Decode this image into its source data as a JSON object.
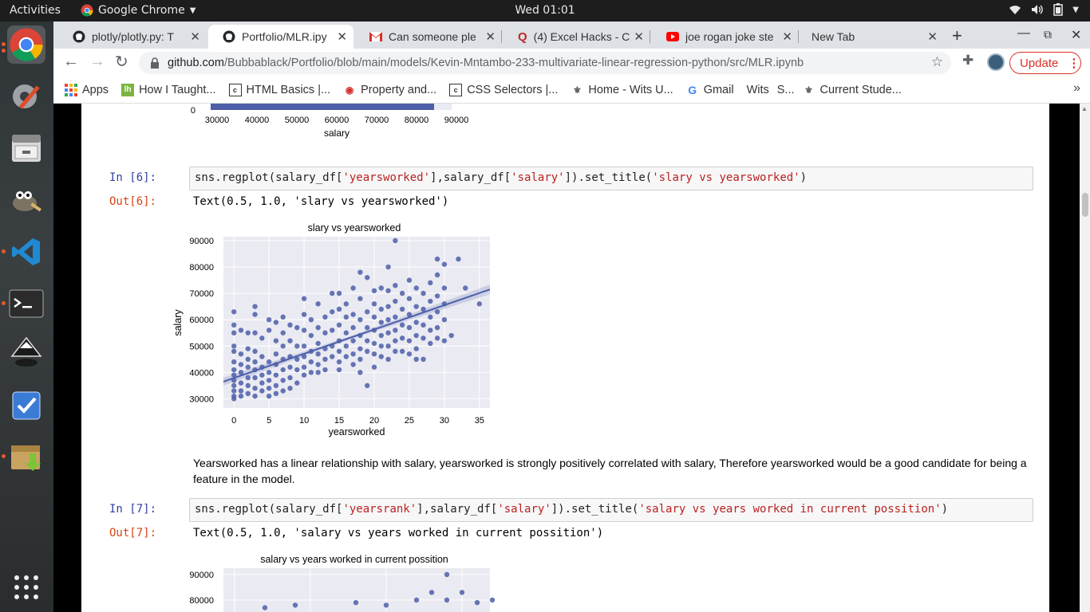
{
  "topbar": {
    "activities": "Activities",
    "app": "Google Chrome",
    "clock": "Wed 01:01"
  },
  "tabs": [
    {
      "title": "plotly/plotly.py: T",
      "icon": "github-icon"
    },
    {
      "title": "Portfolio/MLR.ipy",
      "icon": "github-icon"
    },
    {
      "title": "Can someone ple",
      "icon": "gmail-icon"
    },
    {
      "title": "(4) Excel Hacks - C",
      "icon": "quora-icon"
    },
    {
      "title": "joe rogan joke ste",
      "icon": "youtube-icon"
    },
    {
      "title": "New Tab",
      "icon": ""
    }
  ],
  "address": {
    "domain": "github.com",
    "path": "/Bubbablack/Portfolio/blob/main/models/Kevin-Mntambo-233-multivariate-linear-regression-python/src/MLR.ipynb"
  },
  "update_label": "Update",
  "bookmarks": [
    "Apps",
    "How I Taught...",
    "HTML Basics |...",
    "Property and...",
    "CSS Selectors |...",
    "Home - Wits U...",
    "Gmail",
    "Wits",
    "S...",
    "Current Stude..."
  ],
  "hist": {
    "ticks": [
      "30000",
      "40000",
      "50000",
      "60000",
      "70000",
      "80000",
      "90000"
    ],
    "zero": "0",
    "xlabel": "salary"
  },
  "cells": {
    "in6": "In [6]:",
    "out6": "Out[6]:",
    "code6_a": "sns.regplot(salary_df[",
    "code6_b": "'yearsworked'",
    "code6_c": "],salary_df[",
    "code6_d": "'salary'",
    "code6_e": "]).set_title(",
    "code6_f": "'slary vs yearsworked'",
    "code6_g": ")",
    "outtext6": "Text(0.5, 1.0, 'slary vs yearsworked')",
    "markdown": "Yearsworked has a linear relationship with salary, yearsworked is strongly positively correlated with salary, Therefore yearsworked would be a good candidate for being a feature in the model.",
    "in7": "In [7]:",
    "out7": "Out[7]:",
    "code7_a": "sns.regplot(salary_df[",
    "code7_b": "'yearsrank'",
    "code7_c": "],salary_df[",
    "code7_d": "'salary'",
    "code7_e": "]).set_title(",
    "code7_f": "'salary vs years worked in current possition'",
    "code7_g": ")",
    "outtext7": "Text(0.5, 1.0, 'salary vs years worked in current possition')"
  },
  "chart_data": [
    {
      "type": "scatter",
      "title": "slary vs yearsworked",
      "xlabel": "yearsworked",
      "ylabel": "salary",
      "xlim": [
        -1.5,
        36.5
      ],
      "ylim": [
        26500,
        91500
      ],
      "x_ticks": [
        0,
        5,
        10,
        15,
        20,
        25,
        30,
        35
      ],
      "y_ticks": [
        30000,
        40000,
        50000,
        60000,
        70000,
        80000,
        90000
      ],
      "grid": true,
      "regression": {
        "x": [
          -1.5,
          36.5
        ],
        "y": [
          36500,
          71500
        ]
      },
      "points": [
        [
          0,
          63000
        ],
        [
          0,
          58000
        ],
        [
          0,
          55000
        ],
        [
          0,
          50000
        ],
        [
          0,
          48000
        ],
        [
          0,
          44000
        ],
        [
          0,
          41000
        ],
        [
          0,
          39000
        ],
        [
          0,
          37000
        ],
        [
          0,
          35000
        ],
        [
          0,
          33000
        ],
        [
          0,
          31000
        ],
        [
          0,
          30000
        ],
        [
          1,
          56000
        ],
        [
          1,
          47000
        ],
        [
          1,
          43000
        ],
        [
          1,
          40000
        ],
        [
          1,
          36000
        ],
        [
          1,
          33000
        ],
        [
          1,
          31000
        ],
        [
          2,
          55000
        ],
        [
          2,
          49000
        ],
        [
          2,
          45000
        ],
        [
          2,
          42000
        ],
        [
          2,
          38000
        ],
        [
          2,
          35000
        ],
        [
          2,
          32000
        ],
        [
          3,
          65000
        ],
        [
          3,
          62000
        ],
        [
          3,
          55000
        ],
        [
          3,
          48000
        ],
        [
          3,
          44000
        ],
        [
          3,
          41000
        ],
        [
          3,
          38000
        ],
        [
          3,
          34000
        ],
        [
          3,
          31000
        ],
        [
          4,
          53000
        ],
        [
          4,
          46000
        ],
        [
          4,
          42000
        ],
        [
          4,
          39000
        ],
        [
          4,
          36000
        ],
        [
          4,
          33000
        ],
        [
          5,
          60000
        ],
        [
          5,
          56000
        ],
        [
          5,
          44000
        ],
        [
          5,
          40000
        ],
        [
          5,
          37000
        ],
        [
          5,
          34000
        ],
        [
          5,
          31000
        ],
        [
          6,
          59000
        ],
        [
          6,
          52000
        ],
        [
          6,
          47000
        ],
        [
          6,
          43000
        ],
        [
          6,
          39000
        ],
        [
          6,
          35000
        ],
        [
          6,
          32000
        ],
        [
          7,
          61000
        ],
        [
          7,
          55000
        ],
        [
          7,
          50000
        ],
        [
          7,
          45000
        ],
        [
          7,
          41000
        ],
        [
          7,
          37000
        ],
        [
          7,
          33000
        ],
        [
          8,
          58000
        ],
        [
          8,
          52000
        ],
        [
          8,
          46000
        ],
        [
          8,
          42000
        ],
        [
          8,
          38000
        ],
        [
          8,
          34000
        ],
        [
          9,
          57000
        ],
        [
          9,
          50000
        ],
        [
          9,
          45000
        ],
        [
          9,
          41000
        ],
        [
          9,
          36000
        ],
        [
          10,
          68000
        ],
        [
          10,
          62000
        ],
        [
          10,
          56000
        ],
        [
          10,
          50000
        ],
        [
          10,
          46000
        ],
        [
          10,
          42000
        ],
        [
          10,
          39000
        ],
        [
          11,
          60000
        ],
        [
          11,
          54000
        ],
        [
          11,
          48000
        ],
        [
          11,
          44000
        ],
        [
          11,
          40000
        ],
        [
          12,
          66000
        ],
        [
          12,
          57000
        ],
        [
          12,
          51000
        ],
        [
          12,
          47000
        ],
        [
          12,
          43000
        ],
        [
          12,
          40000
        ],
        [
          13,
          61000
        ],
        [
          13,
          55000
        ],
        [
          13,
          49000
        ],
        [
          13,
          45000
        ],
        [
          13,
          41000
        ],
        [
          14,
          70000
        ],
        [
          14,
          63000
        ],
        [
          14,
          56000
        ],
        [
          14,
          50000
        ],
        [
          14,
          46000
        ],
        [
          15,
          70000
        ],
        [
          15,
          64000
        ],
        [
          15,
          58000
        ],
        [
          15,
          52000
        ],
        [
          15,
          48000
        ],
        [
          15,
          44000
        ],
        [
          15,
          41000
        ],
        [
          16,
          66000
        ],
        [
          16,
          61000
        ],
        [
          16,
          55000
        ],
        [
          16,
          50000
        ],
        [
          16,
          46000
        ],
        [
          17,
          72000
        ],
        [
          17,
          62000
        ],
        [
          17,
          57000
        ],
        [
          17,
          52000
        ],
        [
          17,
          47000
        ],
        [
          17,
          43000
        ],
        [
          18,
          78000
        ],
        [
          18,
          68000
        ],
        [
          18,
          60000
        ],
        [
          18,
          54000
        ],
        [
          18,
          49000
        ],
        [
          18,
          45000
        ],
        [
          18,
          40000
        ],
        [
          19,
          76000
        ],
        [
          19,
          63000
        ],
        [
          19,
          57000
        ],
        [
          19,
          52000
        ],
        [
          19,
          48000
        ],
        [
          19,
          35000
        ],
        [
          20,
          71000
        ],
        [
          20,
          66000
        ],
        [
          20,
          61000
        ],
        [
          20,
          56000
        ],
        [
          20,
          51000
        ],
        [
          20,
          47000
        ],
        [
          20,
          42000
        ],
        [
          21,
          72000
        ],
        [
          21,
          64000
        ],
        [
          21,
          59000
        ],
        [
          21,
          54000
        ],
        [
          21,
          50000
        ],
        [
          21,
          46000
        ],
        [
          22,
          80000
        ],
        [
          22,
          71000
        ],
        [
          22,
          65000
        ],
        [
          22,
          60000
        ],
        [
          22,
          55000
        ],
        [
          22,
          50000
        ],
        [
          22,
          45000
        ],
        [
          23,
          90000
        ],
        [
          23,
          73000
        ],
        [
          23,
          67000
        ],
        [
          23,
          61000
        ],
        [
          23,
          56000
        ],
        [
          23,
          52000
        ],
        [
          23,
          48000
        ],
        [
          24,
          70000
        ],
        [
          24,
          64000
        ],
        [
          24,
          58000
        ],
        [
          24,
          53000
        ],
        [
          24,
          48000
        ],
        [
          25,
          75000
        ],
        [
          25,
          68000
        ],
        [
          25,
          62000
        ],
        [
          25,
          57000
        ],
        [
          25,
          52000
        ],
        [
          25,
          47000
        ],
        [
          26,
          72000
        ],
        [
          26,
          65000
        ],
        [
          26,
          59000
        ],
        [
          26,
          54000
        ],
        [
          26,
          49000
        ],
        [
          26,
          45000
        ],
        [
          27,
          70000
        ],
        [
          27,
          64000
        ],
        [
          27,
          58000
        ],
        [
          27,
          53000
        ],
        [
          27,
          45000
        ],
        [
          28,
          74000
        ],
        [
          28,
          67000
        ],
        [
          28,
          61000
        ],
        [
          28,
          56000
        ],
        [
          28,
          51000
        ],
        [
          29,
          83000
        ],
        [
          29,
          77000
        ],
        [
          29,
          69000
        ],
        [
          29,
          63000
        ],
        [
          29,
          57000
        ],
        [
          29,
          53000
        ],
        [
          30,
          81000
        ],
        [
          30,
          72000
        ],
        [
          30,
          66000
        ],
        [
          30,
          60000
        ],
        [
          30,
          52000
        ],
        [
          31,
          54000
        ],
        [
          32,
          83000
        ],
        [
          33,
          72000
        ],
        [
          35,
          66000
        ]
      ]
    },
    {
      "type": "scatter",
      "title": "salary vs years worked in current possition",
      "y_ticks": [
        80000,
        90000
      ],
      "grid": true,
      "points": [
        [
          2,
          77000
        ],
        [
          4,
          78000
        ],
        [
          8,
          79000
        ],
        [
          10,
          78000
        ],
        [
          12,
          80000
        ],
        [
          13,
          83000
        ],
        [
          14,
          90000
        ],
        [
          14,
          80000
        ],
        [
          15,
          83000
        ],
        [
          16,
          79000
        ],
        [
          17,
          80000
        ]
      ]
    }
  ]
}
